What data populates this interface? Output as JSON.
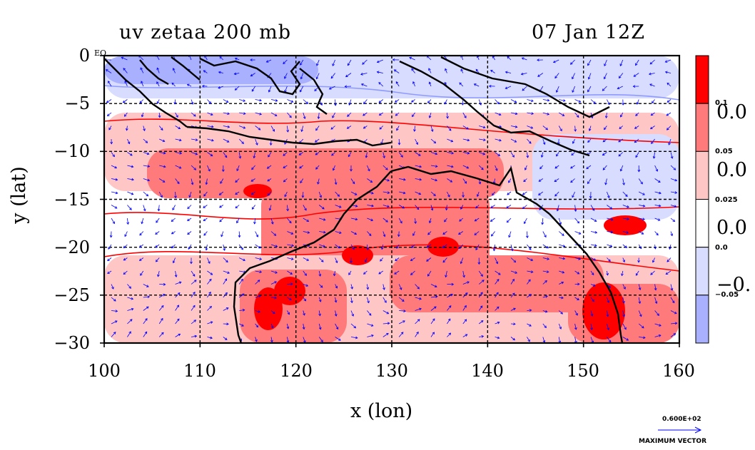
{
  "title": {
    "field": "uv zetaa 200 mb",
    "time": "07 Jan 12Z"
  },
  "axes": {
    "xlabel": "x (lon)",
    "ylabel": "y (lat)",
    "xticks": [
      "100",
      "110",
      "120",
      "130",
      "140",
      "150",
      "160"
    ],
    "yticks": [
      "0",
      "−5",
      "−10",
      "−15",
      "−20",
      "−25",
      "−30"
    ],
    "corner_label": "EQ",
    "xlim": [
      100,
      160
    ],
    "ylim": [
      -30,
      0
    ],
    "grid": true
  },
  "colorbar": {
    "small_labels": [
      "0.1",
      "0.05",
      "0.025",
      "0.0",
      "−0.05"
    ],
    "big_labels": [
      "0.0",
      "0.0",
      "0.0",
      "−0."
    ],
    "colors": [
      "#ff0000",
      "#ff7a7a",
      "#ffc6c6",
      "#ffffff",
      "#d8dcff",
      "#a9b1ff"
    ]
  },
  "vector_key": {
    "value": "0.600E+02",
    "caption": "MAXIMUM VECTOR"
  },
  "colors": {
    "coast": "#000000",
    "vectors": "#0000ff",
    "contour_red": "#ff0000",
    "contour_blue": "#8f9bff"
  }
}
